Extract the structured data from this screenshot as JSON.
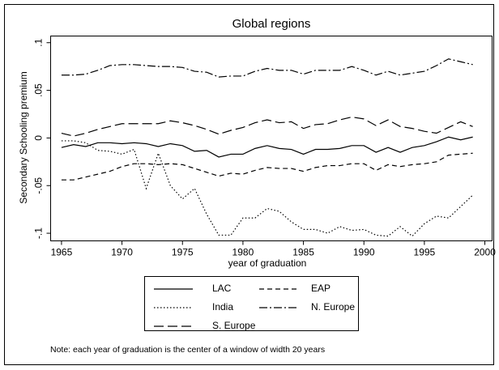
{
  "chart_data": {
    "type": "line",
    "title": "Global regions",
    "xlabel": "year of graduation",
    "ylabel": "Secondary Schooling premium",
    "note": "Note: each year of graduation is the center of a window of width 20 years",
    "x": [
      1965,
      1966,
      1967,
      1968,
      1969,
      1970,
      1971,
      1972,
      1973,
      1974,
      1975,
      1976,
      1977,
      1978,
      1979,
      1980,
      1981,
      1982,
      1983,
      1984,
      1985,
      1986,
      1987,
      1988,
      1989,
      1990,
      1991,
      1992,
      1993,
      1994,
      1995,
      1996,
      1997,
      1998,
      1999
    ],
    "xlim": [
      1964.1,
      2000.6
    ],
    "xticks": [
      1965,
      1970,
      1975,
      1980,
      1985,
      1990,
      1995,
      2000
    ],
    "ylim": [
      -0.108,
      0.107
    ],
    "yticks": [
      {
        "value": -0.1,
        "label": "-.1"
      },
      {
        "value": -0.05,
        "label": "-.05"
      },
      0,
      {
        "value": 0.05,
        "label": ".05"
      },
      {
        "value": 0.1,
        "label": ".1"
      }
    ],
    "series": [
      {
        "name": "LAC",
        "color": "#000000",
        "style": "solid",
        "values": [
          -0.01,
          -0.007,
          -0.009,
          -0.005,
          -0.005,
          -0.006,
          -0.005,
          -0.006,
          -0.009,
          -0.006,
          -0.008,
          -0.014,
          -0.013,
          -0.02,
          -0.017,
          -0.017,
          -0.011,
          -0.008,
          -0.011,
          -0.012,
          -0.017,
          -0.012,
          -0.012,
          -0.011,
          -0.008,
          -0.008,
          -0.015,
          -0.01,
          -0.015,
          -0.01,
          -0.008,
          -0.004,
          0.001,
          -0.002,
          0.001
        ]
      },
      {
        "name": "EAP",
        "color": "#000000",
        "style": "dashed",
        "values": [
          -0.044,
          -0.044,
          -0.041,
          -0.038,
          -0.035,
          -0.03,
          -0.027,
          -0.027,
          -0.028,
          -0.027,
          -0.028,
          -0.032,
          -0.036,
          -0.04,
          -0.037,
          -0.038,
          -0.034,
          -0.031,
          -0.032,
          -0.032,
          -0.035,
          -0.031,
          -0.029,
          -0.029,
          -0.027,
          -0.027,
          -0.034,
          -0.028,
          -0.03,
          -0.028,
          -0.027,
          -0.025,
          -0.018,
          -0.017,
          -0.016
        ]
      },
      {
        "name": "India",
        "color": "#000000",
        "style": "dotted",
        "values": [
          -0.003,
          -0.003,
          -0.005,
          -0.013,
          -0.014,
          -0.017,
          -0.012,
          -0.053,
          -0.016,
          -0.05,
          -0.064,
          -0.053,
          -0.08,
          -0.102,
          -0.102,
          -0.084,
          -0.084,
          -0.074,
          -0.077,
          -0.088,
          -0.096,
          -0.096,
          -0.1,
          -0.093,
          -0.097,
          -0.096,
          -0.102,
          -0.103,
          -0.093,
          -0.103,
          -0.09,
          -0.082,
          -0.084,
          -0.072,
          -0.06
        ]
      },
      {
        "name": "N. Europe",
        "color": "#000000",
        "style": "dash-dot",
        "values": [
          0.066,
          0.066,
          0.067,
          0.071,
          0.076,
          0.077,
          0.077,
          0.076,
          0.075,
          0.075,
          0.074,
          0.07,
          0.069,
          0.064,
          0.065,
          0.065,
          0.07,
          0.073,
          0.071,
          0.071,
          0.067,
          0.071,
          0.071,
          0.071,
          0.075,
          0.071,
          0.066,
          0.07,
          0.066,
          0.068,
          0.07,
          0.076,
          0.083,
          0.08,
          0.077
        ]
      },
      {
        "name": "S. Europe",
        "color": "#000000",
        "style": "long-dash",
        "values": [
          0.005,
          0.002,
          0.005,
          0.009,
          0.012,
          0.015,
          0.015,
          0.015,
          0.015,
          0.018,
          0.016,
          0.013,
          0.009,
          0.004,
          0.008,
          0.011,
          0.016,
          0.019,
          0.016,
          0.017,
          0.01,
          0.014,
          0.015,
          0.019,
          0.022,
          0.02,
          0.013,
          0.019,
          0.012,
          0.01,
          0.007,
          0.005,
          0.011,
          0.017,
          0.012
        ]
      }
    ]
  }
}
